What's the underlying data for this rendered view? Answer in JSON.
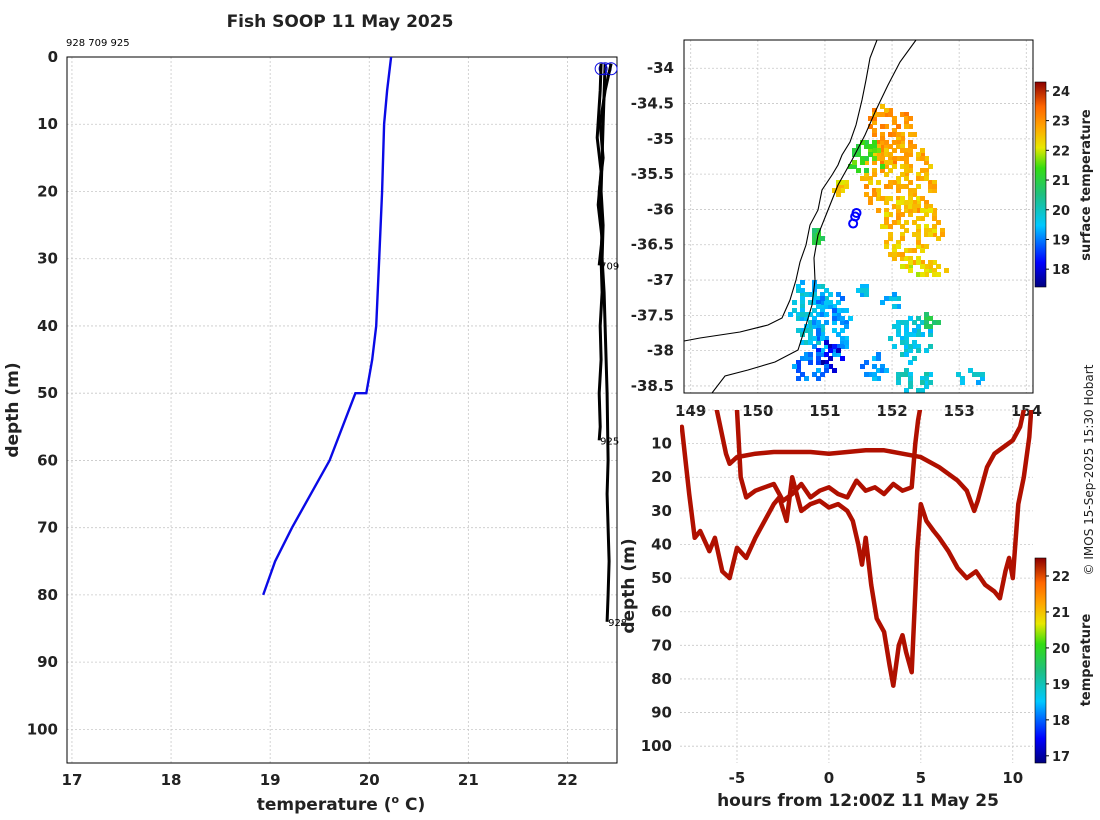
{
  "title": "Fish SOOP 11 May 2025",
  "ids_label": "928 709 925",
  "credit": "© IMOS 15-Sep-2025 15:30 Hobart",
  "colors": {
    "profile_blue": "#0a0ae6",
    "profile_black": "#000000",
    "track_red": "#b01000"
  },
  "chart_data": [
    {
      "type": "line",
      "name": "temperature-depth profile",
      "xlabel": "temperature (o C)",
      "ylabel": "depth (m)",
      "xlim": [
        16.95,
        22.5
      ],
      "ylim": [
        105,
        0
      ],
      "xticks": [
        "17",
        "18",
        "19",
        "20",
        "21",
        "22"
      ],
      "yticks": [
        "0",
        "10",
        "20",
        "30",
        "40",
        "50",
        "60",
        "70",
        "80",
        "90",
        "100"
      ],
      "series": [
        {
          "name": "profile",
          "color": "#0a0ae6",
          "temperature": [
            20.22,
            20.18,
            20.15,
            20.13,
            20.1,
            20.07,
            20.03,
            19.97,
            19.86,
            19.6,
            19.22,
            19.05,
            18.93
          ],
          "depth": [
            0,
            5,
            10,
            20,
            30,
            40,
            45,
            50,
            50,
            60,
            70,
            75,
            80
          ]
        },
        {
          "name": "tag 928",
          "color": "#000000",
          "end_label": "928",
          "temperature": [
            22.38,
            22.36,
            22.34,
            22.36,
            22.35,
            22.37,
            22.38,
            22.39,
            22.4,
            22.41,
            22.4,
            22.41,
            22.42,
            22.41,
            22.4
          ],
          "depth": [
            1,
            10,
            20,
            25,
            30,
            35,
            40,
            45,
            50,
            60,
            65,
            70,
            75,
            80,
            84
          ]
        },
        {
          "name": "tag 709",
          "color": "#000000",
          "end_label": "709",
          "temperature": [
            22.34,
            22.33,
            22.3,
            22.34,
            22.31,
            22.35,
            22.32
          ],
          "depth": [
            1,
            5,
            12,
            17,
            22,
            27,
            31
          ]
        },
        {
          "name": "tag 925",
          "color": "#000000",
          "end_label": "925",
          "temperature": [
            22.44,
            22.38,
            22.33,
            22.36,
            22.32,
            22.35,
            22.34,
            22.35,
            22.33,
            22.34,
            22.32,
            22.33,
            22.32
          ],
          "depth": [
            1,
            5,
            10,
            15,
            20,
            25,
            30,
            35,
            40,
            45,
            50,
            55,
            57
          ]
        }
      ]
    },
    {
      "type": "heatmap",
      "name": "surface temperature map",
      "xlim": [
        148.9,
        154.1
      ],
      "ylim": [
        -38.6,
        -33.6
      ],
      "xticks": [
        "149",
        "150",
        "151",
        "152",
        "153",
        "154"
      ],
      "yticks": [
        "-34",
        "-34.5",
        "-35",
        "-35.5",
        "-36",
        "-36.5",
        "-37",
        "-37.5",
        "-38",
        "-38.5"
      ],
      "colorbar_label": "surface temperature",
      "colorbar_ticks": [
        "18",
        "19",
        "20",
        "21",
        "22",
        "23",
        "24"
      ],
      "colorbar_range": [
        17.4,
        24.3
      ],
      "fish_positions": [
        {
          "lon": 151.47,
          "lat": -36.05
        },
        {
          "lon": 151.45,
          "lat": -36.1
        },
        {
          "lon": 151.42,
          "lat": -36.2
        }
      ],
      "patches": [
        {
          "lon": 151.95,
          "lat": -34.9,
          "rlon": 0.35,
          "rlat": 0.45,
          "temp": 22.9
        },
        {
          "lon": 152.05,
          "lat": -35.55,
          "rlon": 0.55,
          "rlat": 0.55,
          "temp": 22.7
        },
        {
          "lon": 152.25,
          "lat": -36.25,
          "rlon": 0.45,
          "rlat": 0.5,
          "temp": 22.5
        },
        {
          "lon": 152.45,
          "lat": -36.8,
          "rlon": 0.35,
          "rlat": 0.15,
          "temp": 22.2
        },
        {
          "lon": 151.6,
          "lat": -35.25,
          "rlon": 0.25,
          "rlat": 0.25,
          "temp": 21.3
        },
        {
          "lon": 151.2,
          "lat": -35.65,
          "rlon": 0.12,
          "rlat": 0.1,
          "temp": 22.4
        },
        {
          "lon": 150.85,
          "lat": -36.35,
          "rlon": 0.12,
          "rlat": 0.08,
          "temp": 21.0
        },
        {
          "lon": 150.72,
          "lat": -37.4,
          "rlon": 0.28,
          "rlat": 0.5,
          "temp": 19.6
        },
        {
          "lon": 151.05,
          "lat": -37.6,
          "rlon": 0.3,
          "rlat": 0.5,
          "temp": 19.2
        },
        {
          "lon": 151.05,
          "lat": -38.05,
          "rlon": 0.18,
          "rlat": 0.2,
          "temp": 18.0
        },
        {
          "lon": 150.75,
          "lat": -38.2,
          "rlon": 0.25,
          "rlat": 0.2,
          "temp": 19.0
        },
        {
          "lon": 152.25,
          "lat": -37.8,
          "rlon": 0.3,
          "rlat": 0.35,
          "temp": 19.7
        },
        {
          "lon": 151.95,
          "lat": -37.25,
          "rlon": 0.18,
          "rlat": 0.1,
          "temp": 19.5
        },
        {
          "lon": 151.55,
          "lat": -37.12,
          "rlon": 0.12,
          "rlat": 0.08,
          "temp": 19.6
        },
        {
          "lon": 152.55,
          "lat": -37.55,
          "rlon": 0.12,
          "rlat": 0.15,
          "temp": 20.6
        },
        {
          "lon": 151.7,
          "lat": -38.2,
          "rlon": 0.18,
          "rlat": 0.2,
          "temp": 19.2
        },
        {
          "lon": 152.3,
          "lat": -38.4,
          "rlon": 0.35,
          "rlat": 0.15,
          "temp": 19.8
        },
        {
          "lon": 153.15,
          "lat": -38.35,
          "rlon": 0.25,
          "rlat": 0.1,
          "temp": 19.6
        }
      ]
    },
    {
      "type": "line",
      "name": "depth-time track",
      "xlabel": "hours from 12:00Z 11 May 25",
      "ylabel": "depth (m)",
      "xlim": [
        -8.1,
        11.1
      ],
      "ylim": [
        105,
        0
      ],
      "xticks": [
        "-5",
        "0",
        "5",
        "10"
      ],
      "yticks": [
        "0",
        "10",
        "20",
        "30",
        "40",
        "50",
        "60",
        "70",
        "80",
        "90",
        "100"
      ],
      "colorbar_label": "temperature",
      "colorbar_ticks": [
        "17",
        "18",
        "19",
        "20",
        "21",
        "22"
      ],
      "colorbar_range": [
        16.8,
        22.5
      ],
      "series": [
        {
          "name": "tag 709",
          "hours": [
            -6.1,
            -5.6,
            -5.4,
            -5.0,
            -4.0,
            -3.0,
            -2.0,
            -1.0,
            0.0,
            1.0,
            2.0,
            3.0,
            4.0,
            5.0,
            6.0,
            7.0,
            7.5,
            7.9,
            8.1,
            8.6,
            9.0,
            9.5,
            10.0,
            10.4,
            10.6
          ],
          "depth": [
            0,
            13,
            16,
            14,
            13,
            12.5,
            12.5,
            12.5,
            13,
            12.5,
            12,
            12,
            13,
            14,
            17,
            21,
            24,
            30,
            27,
            17,
            13,
            11,
            9,
            5,
            0
          ]
        },
        {
          "name": "tag 925",
          "hours": [
            -5.0,
            -4.8,
            -4.5,
            -4.0,
            -3.5,
            -3.0,
            -2.5,
            -2.0,
            -1.5,
            -1.0,
            -0.5,
            0.0,
            0.5,
            1.0,
            1.5,
            2.0,
            2.5,
            3.0,
            3.5,
            4.0,
            4.5,
            4.7,
            4.85,
            4.95
          ],
          "depth": [
            0,
            20,
            26,
            24,
            23,
            22,
            27,
            25,
            22,
            26,
            24,
            23,
            25,
            26,
            21,
            24,
            23,
            25,
            22,
            24,
            23,
            10,
            3,
            0
          ]
        },
        {
          "name": "tag 928",
          "hours": [
            -8.0,
            -7.6,
            -7.3,
            -7.0,
            -6.5,
            -6.2,
            -5.8,
            -5.4,
            -5.0,
            -4.5,
            -4.0,
            -3.5,
            -3.0,
            -2.7,
            -2.3,
            -2.0,
            -1.5,
            -1.0,
            -0.5,
            0.0,
            0.5,
            1.0,
            1.3,
            1.6,
            1.8,
            2.0,
            2.3,
            2.6,
            3.0,
            3.3,
            3.5,
            3.8,
            4.0,
            4.2,
            4.5,
            4.8,
            5.0,
            5.3,
            5.7,
            6.0,
            6.5,
            7.0,
            7.5,
            8.0,
            8.5,
            9.0,
            9.3,
            9.6,
            9.8,
            10.0,
            10.3,
            10.6,
            10.9,
            11.0
          ],
          "depth": [
            5,
            25,
            38,
            36,
            42,
            38,
            48,
            50,
            41,
            44,
            38,
            33,
            28,
            26,
            33,
            20,
            30,
            28,
            27,
            29,
            28,
            30,
            33,
            40,
            46,
            38,
            52,
            62,
            66,
            76,
            82,
            70,
            67,
            72,
            78,
            42,
            28,
            33,
            36,
            38,
            42,
            47,
            50,
            48,
            52,
            54,
            56,
            48,
            44,
            50,
            28,
            20,
            8,
            0
          ]
        }
      ]
    }
  ]
}
